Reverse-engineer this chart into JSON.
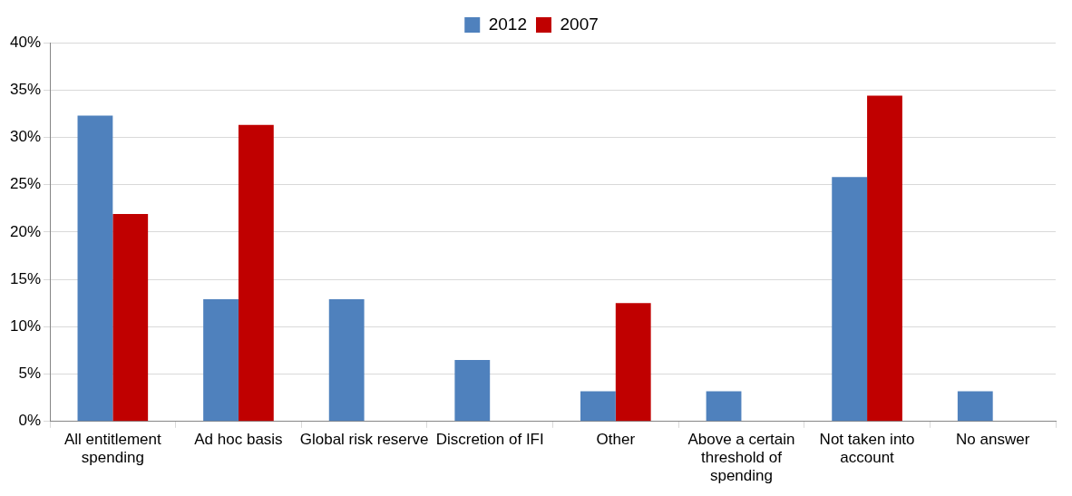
{
  "chart_data": {
    "type": "bar",
    "categories": [
      "All entitlement spending",
      "Ad hoc basis",
      "Global risk reserve",
      "Discretion of IFI",
      "Other",
      "Above a certain threshold of spending",
      "Not taken into account",
      "No answer"
    ],
    "series": [
      {
        "name": "2012",
        "color": "#4f81bd",
        "values": [
          32.3,
          12.9,
          12.9,
          6.5,
          3.2,
          3.2,
          25.8,
          3.2
        ]
      },
      {
        "name": "2007",
        "color": "#c00000",
        "values": [
          21.9,
          31.3,
          0,
          0,
          12.5,
          0,
          34.4,
          0
        ]
      }
    ],
    "ylim": [
      0,
      40
    ],
    "yticks": [
      {
        "value": 0,
        "label": "0%"
      },
      {
        "value": 5,
        "label": "5%"
      },
      {
        "value": 10,
        "label": "10%"
      },
      {
        "value": 15,
        "label": "15%"
      },
      {
        "value": 20,
        "label": "20%"
      },
      {
        "value": 25,
        "label": "25%"
      },
      {
        "value": 30,
        "label": "30%"
      },
      {
        "value": 35,
        "label": "35%"
      },
      {
        "value": 40,
        "label": "40%"
      }
    ],
    "grid": "y",
    "legend": "top"
  }
}
